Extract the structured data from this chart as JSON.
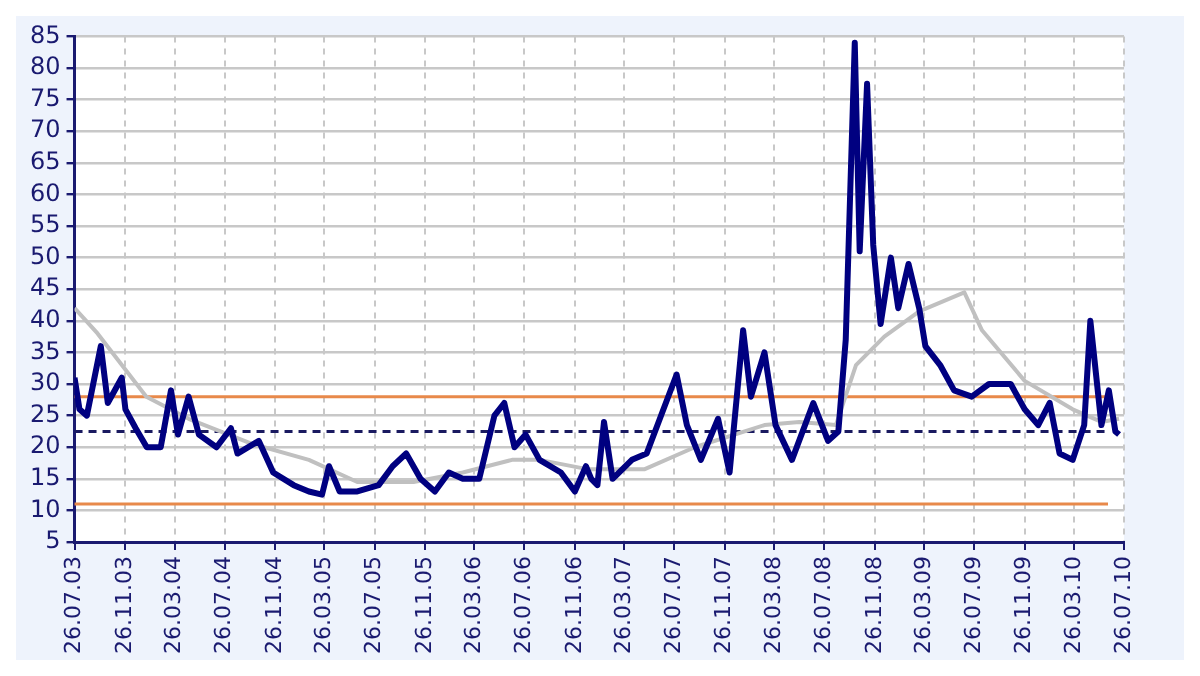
{
  "chart_data": {
    "type": "line",
    "series": [
      {
        "color": "#000080",
        "x": [
          "2003-07-26",
          "2003-08-07",
          "2003-08-25",
          "2003-09-28",
          "2003-10-15",
          "2003-11-18",
          "2003-11-27",
          "2003-12-22",
          "2004-01-18",
          "2004-02-21",
          "2004-03-17",
          "2004-04-03",
          "2004-04-29",
          "2004-05-24",
          "2004-07-06",
          "2004-08-10",
          "2004-08-26",
          "2004-10-17",
          "2004-11-21",
          "2005-01-10",
          "2005-02-16",
          "2005-03-20",
          "2005-04-06",
          "2005-05-02",
          "2005-06-14",
          "2005-08-05",
          "2005-09-08",
          "2005-10-11",
          "2005-11-15",
          "2005-12-20",
          "2006-01-23",
          "2006-02-26",
          "2006-04-07",
          "2006-05-14",
          "2006-06-07",
          "2006-07-02",
          "2006-07-29",
          "2006-09-01",
          "2006-10-23",
          "2006-11-26",
          "2006-12-23",
          "2007-01-05",
          "2007-01-20",
          "2007-02-05",
          "2007-02-26",
          "2007-04-14",
          "2007-05-20",
          "2007-08-01",
          "2007-08-26",
          "2007-09-29",
          "2007-11-10",
          "2007-12-08",
          "2008-01-10",
          "2008-01-29",
          "2008-03-02",
          "2008-03-29",
          "2008-05-08",
          "2008-06-29",
          "2008-08-04",
          "2008-08-29",
          "2008-09-16",
          "2008-10-08",
          "2008-10-20",
          "2008-11-07",
          "2008-11-22",
          "2008-12-10",
          "2009-01-04",
          "2009-01-22",
          "2009-02-16",
          "2009-03-14",
          "2009-03-29",
          "2009-05-04",
          "2009-06-07",
          "2009-07-20",
          "2009-08-31",
          "2009-10-23",
          "2009-11-26",
          "2009-12-29",
          "2010-01-26",
          "2010-02-19",
          "2010-03-23",
          "2010-04-20",
          "2010-05-05",
          "2010-06-01",
          "2010-06-19",
          "2010-07-05",
          "2010-07-14"
        ],
        "values": [
          31,
          26,
          25,
          36,
          27,
          31,
          26,
          23,
          20,
          20,
          29,
          22,
          28,
          22,
          20,
          23,
          19,
          21,
          16,
          14,
          13,
          12.5,
          17,
          13,
          13,
          14,
          17,
          19,
          15,
          13,
          16,
          15,
          15,
          25,
          27,
          20,
          22,
          18,
          16,
          13,
          17,
          15,
          14,
          24,
          15,
          18,
          19,
          31.5,
          23.5,
          18,
          24.5,
          16,
          38.5,
          28,
          35,
          23.5,
          18,
          27,
          21,
          22.5,
          37,
          84,
          51,
          77.5,
          52,
          39.5,
          50,
          42,
          49,
          42,
          36,
          33,
          29,
          28,
          30,
          30,
          26,
          23.5,
          27,
          19,
          18,
          23.5,
          40,
          23.5,
          29,
          22.5,
          22
        ]
      },
      {
        "color": "#c0c0c0",
        "x": [
          "2003-07-26",
          "2003-09-20",
          "2004-01-17",
          "2004-04-29",
          "2004-10-02",
          "2005-02-16",
          "2005-06-14",
          "2005-10-29",
          "2006-02-26",
          "2006-06-26",
          "2006-09-01",
          "2006-12-29",
          "2007-05-14",
          "2007-09-14",
          "2008-03-02",
          "2008-05-26",
          "2008-08-23",
          "2008-10-11",
          "2008-12-19",
          "2009-03-14",
          "2009-07-02",
          "2009-08-14",
          "2009-11-26",
          "2010-03-23",
          "2010-06-01",
          "2010-07-14"
        ],
        "values": [
          42,
          38,
          28,
          24.5,
          20.5,
          18,
          14.5,
          14.5,
          16,
          18,
          18,
          16.5,
          16.5,
          20,
          23.5,
          24,
          23.5,
          33,
          37.5,
          41.5,
          44.5,
          38.5,
          30.5,
          26,
          24,
          24.5
        ]
      }
    ],
    "xlim": [
      "2003-07-26",
      "2010-07-26"
    ],
    "xticks": [
      {
        "value": "2003-07-26",
        "label": "26.07.03"
      },
      {
        "value": "2003-11-26",
        "label": "26.11.03"
      },
      {
        "value": "2004-03-26",
        "label": "26.03.04"
      },
      {
        "value": "2004-07-26",
        "label": "26.07.04"
      },
      {
        "value": "2004-11-26",
        "label": "26.11.04"
      },
      {
        "value": "2005-03-26",
        "label": "26.03.05"
      },
      {
        "value": "2005-07-26",
        "label": "26.07.05"
      },
      {
        "value": "2005-11-26",
        "label": "26.11.05"
      },
      {
        "value": "2006-03-26",
        "label": "26.03.06"
      },
      {
        "value": "2006-07-26",
        "label": "26.07.06"
      },
      {
        "value": "2006-11-26",
        "label": "26.11.06"
      },
      {
        "value": "2007-03-26",
        "label": "26.03.07"
      },
      {
        "value": "2007-07-26",
        "label": "26.07.07"
      },
      {
        "value": "2007-11-26",
        "label": "26.11.07"
      },
      {
        "value": "2008-03-26",
        "label": "26.03.08"
      },
      {
        "value": "2008-07-26",
        "label": "26.07.08"
      },
      {
        "value": "2008-11-26",
        "label": "26.11.08"
      },
      {
        "value": "2009-03-26",
        "label": "26.03.09"
      },
      {
        "value": "2009-07-26",
        "label": "26.07.09"
      },
      {
        "value": "2009-11-26",
        "label": "26.11.09"
      },
      {
        "value": "2010-03-26",
        "label": "26.03.10"
      },
      {
        "value": "2010-07-26",
        "label": "26.07.10"
      }
    ],
    "ylim": [
      5,
      85
    ],
    "yticks": [
      5,
      10,
      15,
      20,
      25,
      30,
      35,
      40,
      45,
      50,
      55,
      60,
      65,
      70,
      75,
      80,
      85
    ],
    "grid": true,
    "legend": false,
    "marker": "none",
    "line_style": "solid",
    "ref_lines": [
      {
        "axis": "y",
        "value": 28,
        "color": "#e8894a",
        "line_style": "solid"
      },
      {
        "axis": "y",
        "value": 22.5,
        "color": "#1a1a60",
        "line_style": "dashed"
      },
      {
        "axis": "y",
        "value": 11,
        "color": "#e8894a",
        "line_style": "solid"
      }
    ]
  }
}
